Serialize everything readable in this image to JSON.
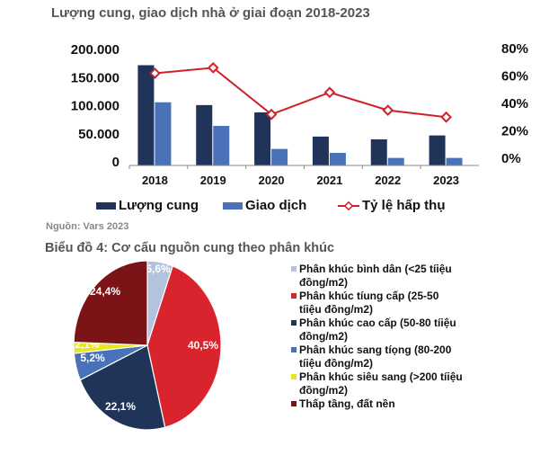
{
  "bar_chart_title": "Lượng cung, giao dịch nhà ở giai đoạn 2018-2023",
  "source": "Nguồn: Vars 2023",
  "pie_chart_title": "Biểu đồ 4: Cơ cấu nguồn cung theo phân khúc",
  "chart_data": [
    {
      "type": "bar",
      "title": "Lượng cung, giao dịch nhà ở giai đoạn 2018-2023",
      "categories": [
        "2018",
        "2019",
        "2020",
        "2021",
        "2022",
        "2023"
      ],
      "y_ticks": [
        "0",
        "50.000",
        "100.000",
        "150.000",
        "200.000"
      ],
      "y2_ticks": [
        "0%",
        "20%",
        "40%",
        "60%",
        "80%"
      ],
      "ylim": [
        0,
        200000
      ],
      "y2lim": [
        0,
        80
      ],
      "grid": false,
      "legend_position": "bottom",
      "series": [
        {
          "name": "Lượng cung",
          "kind": "bar",
          "color": "#1f3458",
          "values": [
            172000,
            101000,
            88000,
            45000,
            40000,
            47000
          ]
        },
        {
          "name": "Giao dịch",
          "kind": "bar",
          "color": "#4a72b8",
          "values": [
            106000,
            64000,
            23000,
            16000,
            7000,
            7000
          ]
        },
        {
          "name": "Tỷ lệ hấp thụ",
          "kind": "line",
          "axis": "right",
          "unit": "%",
          "color": "#d0202a",
          "values": [
            62,
            66,
            32,
            48,
            35,
            30
          ]
        }
      ]
    },
    {
      "type": "pie",
      "title": "Biểu đồ 4: Cơ cấu nguồn cung theo phân khúc",
      "legend_position": "right",
      "slices": [
        {
          "label": "Phân khúc bình dân (<25 tíiệu đồng/m2)",
          "value": 5.6,
          "data_label": "5,6%",
          "color": "#b4c3dd"
        },
        {
          "label": "Phân khúc tíung cấp (25-50 tíiệu đồng/m2)",
          "value": 40.5,
          "data_label": "40,5%",
          "color": "#d9232d"
        },
        {
          "label": "Phân khúc cao cấp (50-80 tíiệu đồng/m2)",
          "value": 22.1,
          "data_label": "22,1%",
          "color": "#1f3458"
        },
        {
          "label": "Phân khúc sang tíọng (80-200 tíiệu đồng/m2)",
          "value": 5.2,
          "data_label": "5,2%",
          "color": "#4a72b8"
        },
        {
          "label": "Phân khúc siêu sang (>200 tíiệu đồng/m2)",
          "value": 2.1,
          "data_label": "2,1%",
          "color": "#e6e622"
        },
        {
          "label": "Thấp tầng, đất nền",
          "value": 24.4,
          "data_label": "24,4%",
          "color": "#7a1416"
        }
      ]
    }
  ]
}
